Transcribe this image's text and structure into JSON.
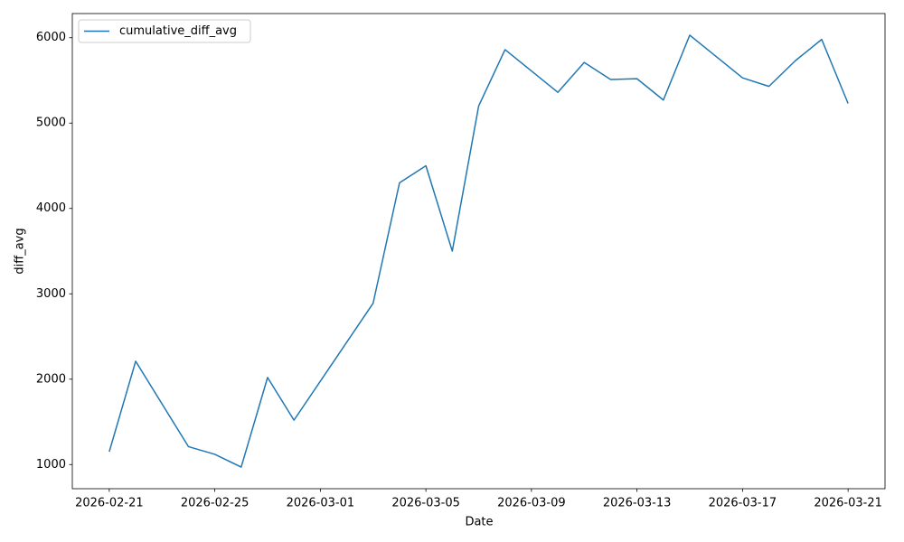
{
  "chart_data": {
    "type": "line",
    "x_label": "Date",
    "y_label": "diff_avg",
    "x": [
      "2026-02-21",
      "2026-02-22",
      "2026-02-24",
      "2026-02-25",
      "2026-02-26",
      "2026-02-27",
      "2026-02-28",
      "2026-03-03",
      "2026-03-04",
      "2026-03-05",
      "2026-03-06",
      "2026-03-07",
      "2026-03-08",
      "2026-03-10",
      "2026-03-11",
      "2026-03-12",
      "2026-03-13",
      "2026-03-14",
      "2026-03-15",
      "2026-03-17",
      "2026-03-18",
      "2026-03-19",
      "2026-03-20",
      "2026-03-21"
    ],
    "series": [
      {
        "name": "cumulative_diff_avg",
        "color": "#1f77b4",
        "values": [
          1150,
          2210,
          1210,
          1120,
          970,
          2020,
          1520,
          2890,
          4300,
          4500,
          3500,
          5200,
          5860,
          5360,
          5710,
          5510,
          5520,
          5270,
          6030,
          5530,
          5430,
          5730,
          5980,
          5230
        ]
      }
    ],
    "xlim": [
      "2026-02-19T14:24",
      "2026-03-22T09:36"
    ],
    "xticks": [
      "2026-02-21",
      "2026-02-25",
      "2026-03-01",
      "2026-03-05",
      "2026-03-09",
      "2026-03-13",
      "2026-03-17",
      "2026-03-21"
    ],
    "ylim": [
      717,
      6283
    ],
    "yticks": [
      1000,
      2000,
      3000,
      4000,
      5000,
      6000
    ],
    "legend": "upper-left"
  }
}
